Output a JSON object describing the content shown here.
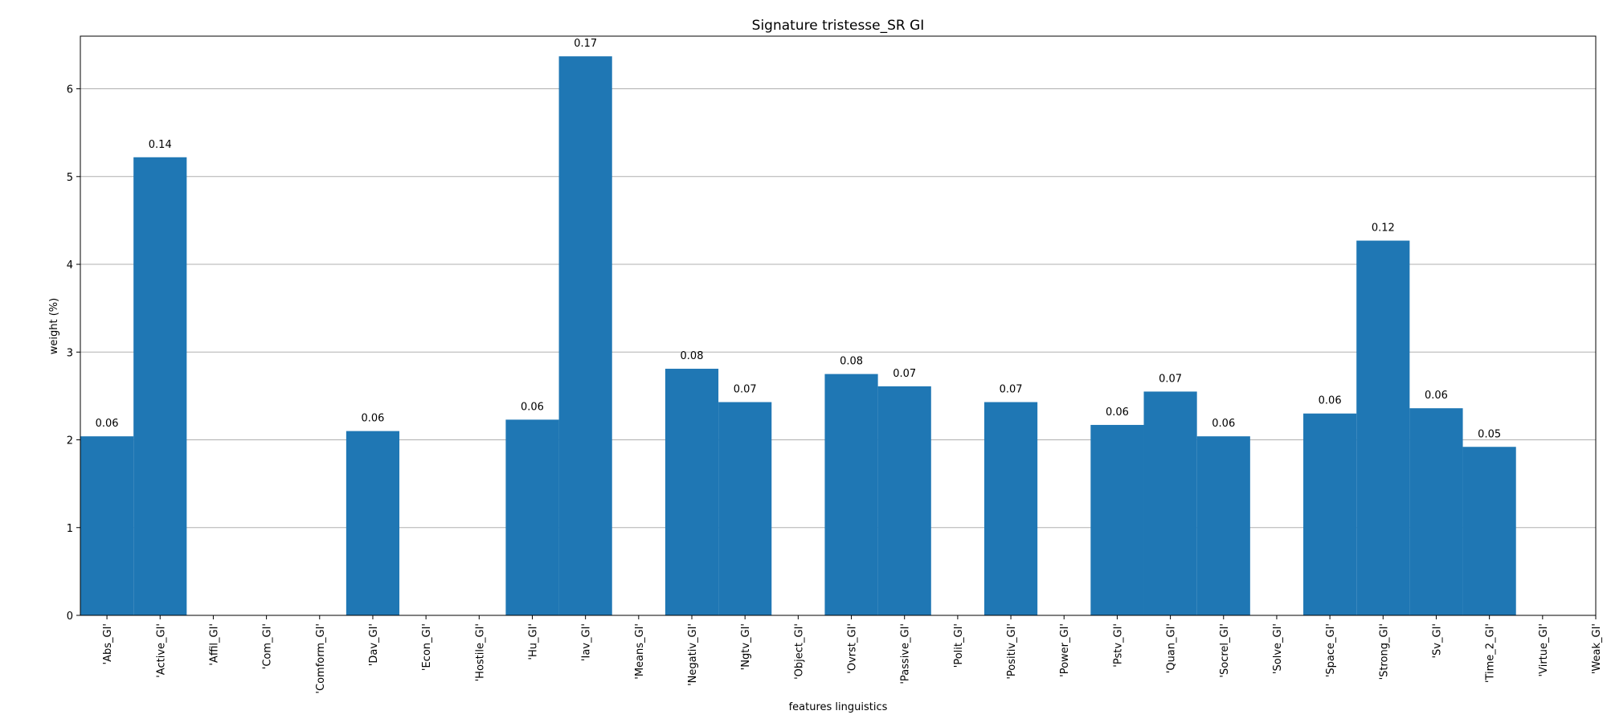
{
  "chart_data": {
    "type": "bar",
    "title": "Signature tristesse_SR GI",
    "xlabel": "features linguistics",
    "ylabel": "weight (%)",
    "ylim": [
      0,
      6.6
    ],
    "yticks": [
      0,
      1,
      2,
      3,
      4,
      5,
      6
    ],
    "grid": "horizontal",
    "bar_color": "#1f77b4",
    "categories": [
      "'Abs_GI'",
      "'Active_GI'",
      "'Affil_GI'",
      "'Com_GI'",
      "'Comform_GI'",
      "'Dav_GI'",
      "'Econ_GI'",
      "'Hostile_GI'",
      "'Hu_GI'",
      "'Iav_GI'",
      "'Means_GI'",
      "'Negativ_GI'",
      "'Ngtv_GI'",
      "'Object_GI'",
      "'Ovrst_GI'",
      "'Passive_GI'",
      "'Polit_GI'",
      "'Positiv_GI'",
      "'Power_GI'",
      "'Pstv_GI'",
      "'Quan_GI'",
      "'Socrel_GI'",
      "'Solve_GI'",
      "'Space_GI'",
      "'Strong_GI'",
      "'Sv_GI'",
      "'Time_2_GI'",
      "'Virtue_GI'",
      "'Weak_GI'"
    ],
    "values": [
      2.04,
      5.22,
      0,
      0,
      0,
      2.1,
      0,
      0,
      2.23,
      6.37,
      0,
      2.81,
      2.43,
      0,
      2.75,
      2.61,
      0,
      2.43,
      0,
      2.17,
      2.55,
      2.04,
      0,
      2.3,
      4.27,
      2.36,
      1.92,
      0,
      0
    ],
    "data_labels": [
      "0.06",
      "0.14",
      "",
      "",
      "",
      "0.06",
      "",
      "",
      "0.06",
      "0.17",
      "",
      "0.08",
      "0.07",
      "",
      "0.08",
      "0.07",
      "",
      "0.07",
      "",
      "0.06",
      "0.07",
      "0.06",
      "",
      "0.06",
      "0.12",
      "0.06",
      "0.05",
      "",
      ""
    ]
  }
}
